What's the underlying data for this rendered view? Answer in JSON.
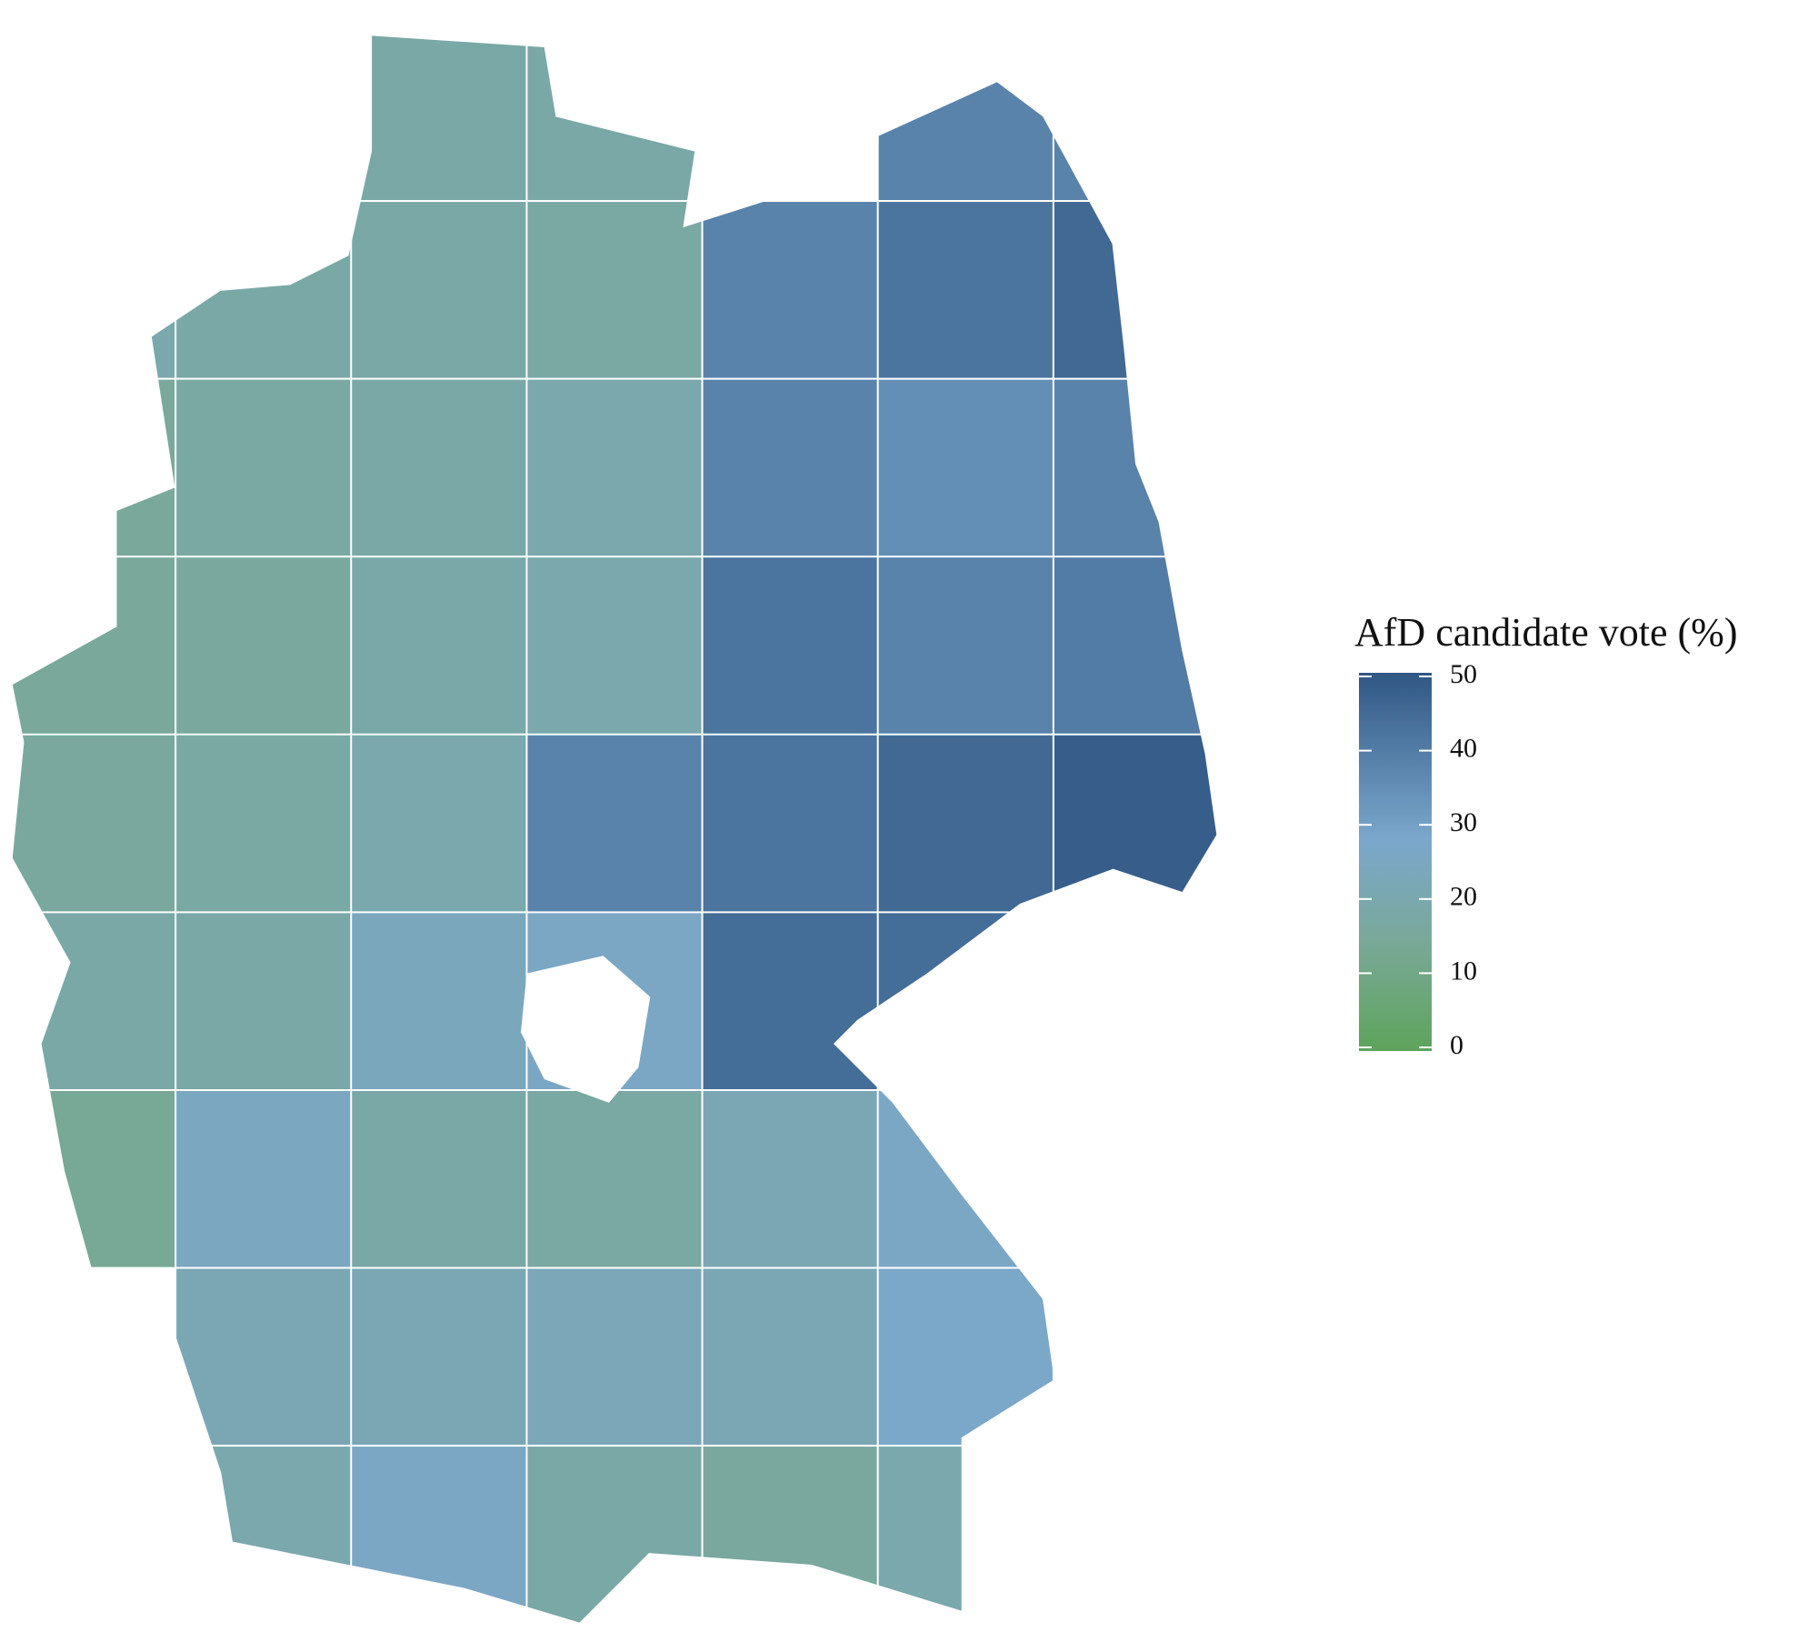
{
  "chart_data": {
    "type": "choropleth",
    "legend_title": "AfD candidate vote (%)",
    "clim": [
      0,
      50
    ],
    "ticks": [
      0,
      10,
      20,
      30,
      40,
      50
    ],
    "colorscale": [
      {
        "value": 0,
        "color": "#5ea45c"
      },
      {
        "value": 15,
        "color": "#7aa89a"
      },
      {
        "value": 28,
        "color": "#7ba7cc"
      },
      {
        "value": 50,
        "color": "#305784"
      }
    ],
    "grid_columns": 7,
    "values": [
      null,
      null,
      18,
      18,
      null,
      38,
      38,
      20,
      18,
      18,
      17,
      38,
      42,
      45,
      15,
      17,
      18,
      20,
      38,
      35,
      38,
      15,
      16,
      19,
      20,
      42,
      38,
      40,
      16,
      17,
      20,
      38,
      42,
      45,
      48,
      18,
      18,
      24,
      26,
      44,
      44,
      null,
      14,
      25,
      18,
      17,
      22,
      26,
      null,
      null,
      22,
      22,
      23,
      22,
      27,
      null,
      null,
      20,
      26,
      18,
      16,
      20,
      null
    ]
  }
}
